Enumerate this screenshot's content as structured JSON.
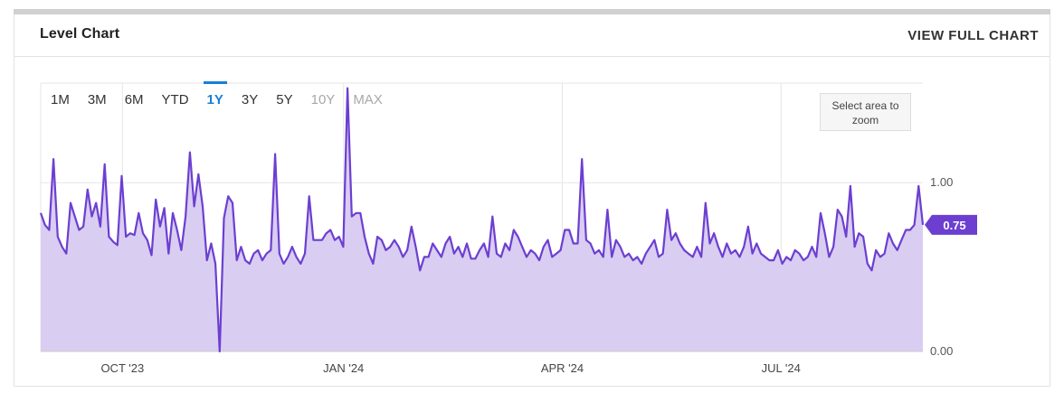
{
  "header": {
    "title": "Level Chart",
    "view_full_label": "VIEW FULL CHART"
  },
  "ranges": [
    {
      "label": "1M",
      "state": "normal"
    },
    {
      "label": "3M",
      "state": "normal"
    },
    {
      "label": "6M",
      "state": "normal"
    },
    {
      "label": "YTD",
      "state": "normal"
    },
    {
      "label": "1Y",
      "state": "active"
    },
    {
      "label": "3Y",
      "state": "normal"
    },
    {
      "label": "5Y",
      "state": "normal"
    },
    {
      "label": "10Y",
      "state": "disabled"
    },
    {
      "label": "MAX",
      "state": "disabled"
    }
  ],
  "zoom_hint": "Select area to zoom",
  "colors": {
    "line": "#6c3fd1",
    "fill": "#d9cdf1",
    "grid": "#e6e6e6",
    "badge": "#6c3fd1",
    "accent": "#1a7fd6"
  },
  "chart_data": {
    "type": "area",
    "x_start": "2023-08-28",
    "x_end": "2024-08-29",
    "x_ticks": [
      {
        "date": "2023-10-01",
        "label": "OCT '23"
      },
      {
        "date": "2024-01-01",
        "label": "JAN '24"
      },
      {
        "date": "2024-04-01",
        "label": "APR '24"
      },
      {
        "date": "2024-07-01",
        "label": "JUL '24"
      }
    ],
    "y_ticks": [
      {
        "value": 1.0,
        "label": "1.00"
      },
      {
        "value": 0.0,
        "label": "0.00"
      }
    ],
    "ylim": [
      0,
      1.59
    ],
    "y_axis_position": "right",
    "last_value_label": "0.75",
    "values": [
      0.82,
      0.75,
      0.72,
      1.14,
      0.68,
      0.62,
      0.58,
      0.88,
      0.8,
      0.72,
      0.74,
      0.96,
      0.8,
      0.88,
      0.74,
      1.11,
      0.68,
      0.65,
      0.63,
      1.04,
      0.68,
      0.7,
      0.69,
      0.82,
      0.7,
      0.66,
      0.57,
      0.9,
      0.74,
      0.85,
      0.58,
      0.82,
      0.72,
      0.6,
      0.8,
      1.18,
      0.86,
      1.05,
      0.86,
      0.54,
      0.64,
      0.52,
      0.0,
      0.79,
      0.92,
      0.88,
      0.54,
      0.62,
      0.54,
      0.52,
      0.58,
      0.6,
      0.54,
      0.58,
      0.6,
      1.17,
      0.58,
      0.52,
      0.56,
      0.62,
      0.56,
      0.52,
      0.58,
      0.92,
      0.66,
      0.66,
      0.66,
      0.7,
      0.72,
      0.66,
      0.68,
      0.62,
      1.56,
      0.8,
      0.82,
      0.82,
      0.68,
      0.58,
      0.52,
      0.68,
      0.66,
      0.6,
      0.62,
      0.66,
      0.62,
      0.56,
      0.6,
      0.74,
      0.62,
      0.48,
      0.56,
      0.56,
      0.64,
      0.6,
      0.56,
      0.64,
      0.68,
      0.58,
      0.62,
      0.56,
      0.64,
      0.55,
      0.55,
      0.6,
      0.64,
      0.56,
      0.8,
      0.58,
      0.56,
      0.64,
      0.6,
      0.72,
      0.68,
      0.62,
      0.56,
      0.6,
      0.58,
      0.54,
      0.62,
      0.66,
      0.56,
      0.58,
      0.6,
      0.72,
      0.72,
      0.64,
      0.64,
      1.14,
      0.66,
      0.64,
      0.58,
      0.6,
      0.56,
      0.84,
      0.56,
      0.66,
      0.62,
      0.56,
      0.58,
      0.54,
      0.56,
      0.52,
      0.58,
      0.62,
      0.66,
      0.56,
      0.58,
      0.84,
      0.66,
      0.7,
      0.64,
      0.6,
      0.58,
      0.56,
      0.62,
      0.56,
      0.88,
      0.64,
      0.7,
      0.62,
      0.56,
      0.64,
      0.58,
      0.6,
      0.56,
      0.62,
      0.74,
      0.58,
      0.64,
      0.58,
      0.56,
      0.54,
      0.54,
      0.6,
      0.52,
      0.56,
      0.54,
      0.6,
      0.58,
      0.54,
      0.56,
      0.62,
      0.56,
      0.82,
      0.7,
      0.56,
      0.62,
      0.84,
      0.8,
      0.68,
      0.98,
      0.62,
      0.7,
      0.68,
      0.52,
      0.48,
      0.6,
      0.56,
      0.58,
      0.7,
      0.64,
      0.6,
      0.66,
      0.72,
      0.72,
      0.75,
      0.98,
      0.75
    ]
  }
}
